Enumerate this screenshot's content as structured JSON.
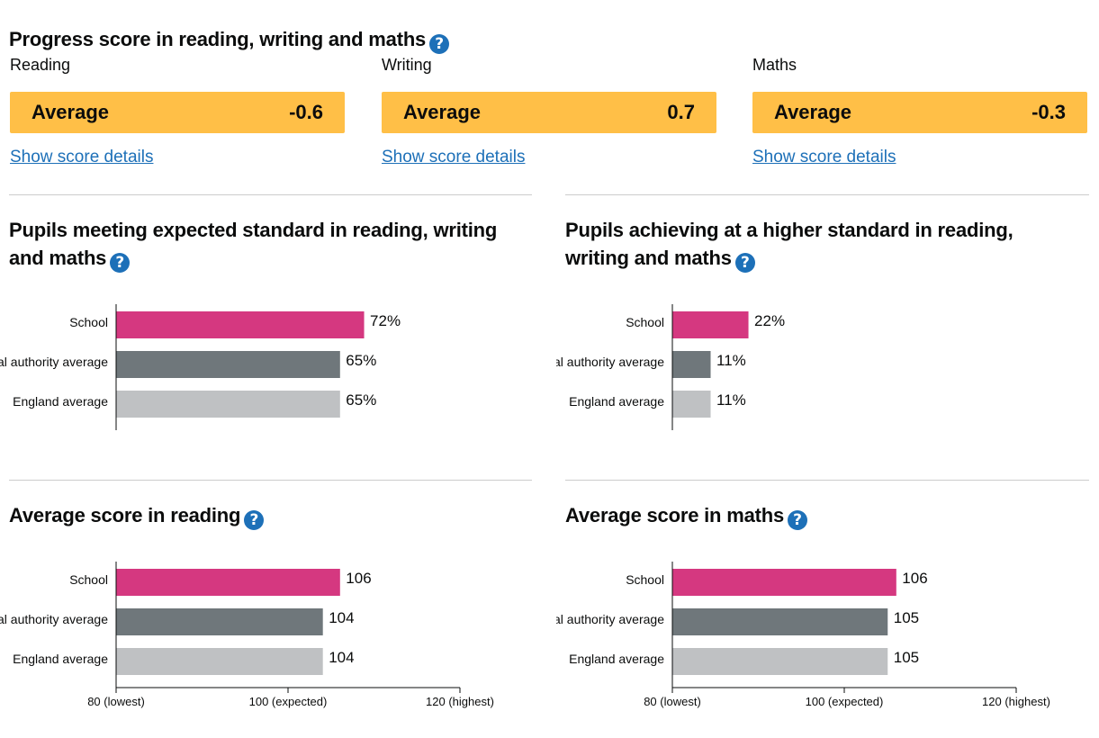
{
  "progress": {
    "title": "Progress score in reading, writing and maths",
    "help_glyph": "?",
    "subjects": [
      {
        "name": "Reading",
        "band": "Average",
        "score": "-0.6",
        "link": "Show score details"
      },
      {
        "name": "Writing",
        "band": "Average",
        "score": "0.7",
        "link": "Show score details"
      },
      {
        "name": "Maths",
        "band": "Average",
        "score": "-0.3",
        "link": "Show score details"
      }
    ],
    "box_color": "#ffbf47"
  },
  "colors": {
    "school": "#d53880",
    "local_authority": "#6f777b",
    "england": "#bfc1c3",
    "help": "#1d70b8",
    "link": "#1d70b8"
  },
  "chart_data": [
    {
      "type": "bar",
      "orientation": "horizontal",
      "title": "Pupils meeting expected standard in reading, writing and maths",
      "categories": [
        "School",
        "Local authority average",
        "England average"
      ],
      "values": [
        72,
        65,
        65
      ],
      "value_labels": [
        "72%",
        "65%",
        "65%"
      ],
      "xlim": [
        0,
        100
      ],
      "xticks": [],
      "grid": false
    },
    {
      "type": "bar",
      "orientation": "horizontal",
      "title": "Pupils achieving at a higher standard in reading, writing and maths",
      "categories": [
        "School",
        "Local authority average",
        "England average"
      ],
      "values": [
        22,
        11,
        11
      ],
      "value_labels": [
        "22%",
        "11%",
        "11%"
      ],
      "xlim": [
        0,
        100
      ],
      "xticks": [],
      "grid": false
    },
    {
      "type": "bar",
      "orientation": "horizontal",
      "title": "Average score in reading",
      "categories": [
        "School",
        "Local authority average",
        "England average"
      ],
      "values": [
        106,
        104,
        104
      ],
      "value_labels": [
        "106",
        "104",
        "104"
      ],
      "xlim": [
        80,
        120
      ],
      "xticks": [
        {
          "value": 80,
          "label": "80 (lowest)"
        },
        {
          "value": 100,
          "label": "100 (expected)"
        },
        {
          "value": 120,
          "label": "120 (highest)"
        }
      ],
      "grid": false
    },
    {
      "type": "bar",
      "orientation": "horizontal",
      "title": "Average score in maths",
      "categories": [
        "School",
        "Local authority average",
        "England average"
      ],
      "values": [
        106,
        105,
        105
      ],
      "value_labels": [
        "106",
        "105",
        "105"
      ],
      "xlim": [
        80,
        120
      ],
      "xticks": [
        {
          "value": 80,
          "label": "80 (lowest)"
        },
        {
          "value": 100,
          "label": "100 (expected)"
        },
        {
          "value": 120,
          "label": "120 (highest)"
        }
      ],
      "grid": false
    }
  ]
}
